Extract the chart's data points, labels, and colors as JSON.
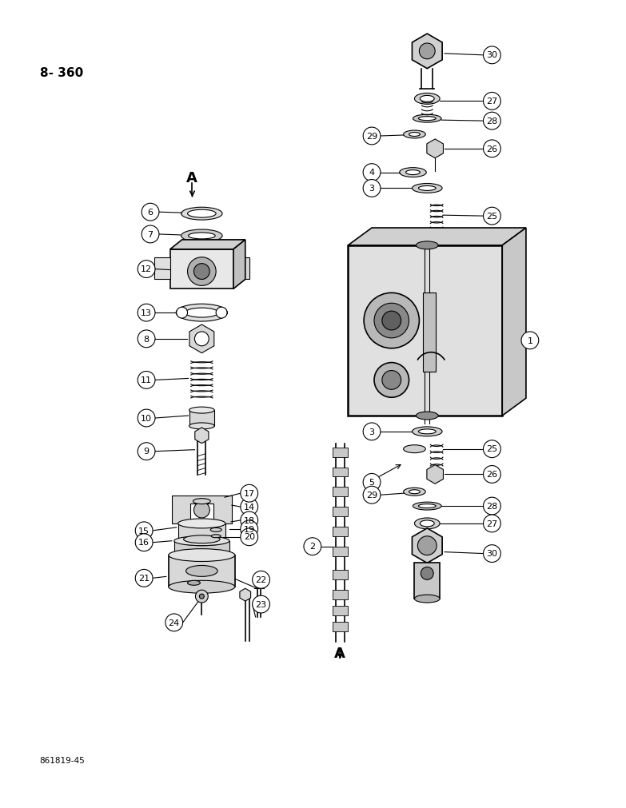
{
  "page_label": "8- 360",
  "footer_label": "861819-45",
  "bg": "#ffffff",
  "lc": "#000000"
}
